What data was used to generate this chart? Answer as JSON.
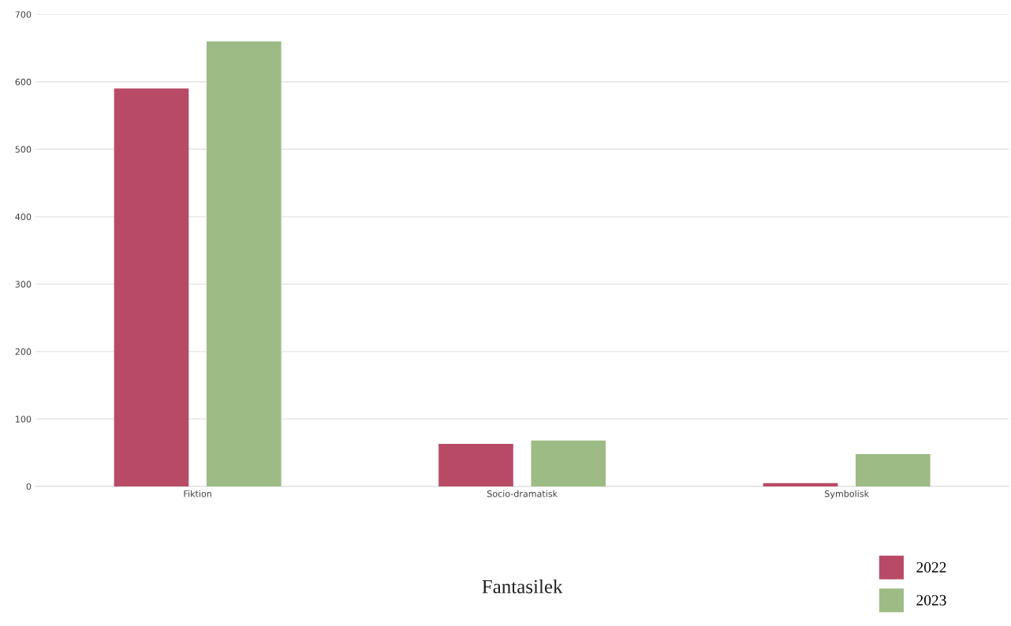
{
  "chart_data": {
    "type": "bar",
    "title": "Fantasilek",
    "categories": [
      "Fiktion",
      "Socio-dramatisk",
      "Symbolisk"
    ],
    "series": [
      {
        "name": "2022",
        "color": "#b94a66",
        "values": [
          590,
          63,
          5
        ]
      },
      {
        "name": "2023",
        "color": "#9dbb84",
        "values": [
          660,
          68,
          48
        ]
      }
    ],
    "ylim": [
      0,
      700
    ],
    "yticks": [
      0,
      100,
      200,
      300,
      400,
      500,
      600,
      700
    ],
    "grid": "y",
    "legend": "bottom right"
  }
}
